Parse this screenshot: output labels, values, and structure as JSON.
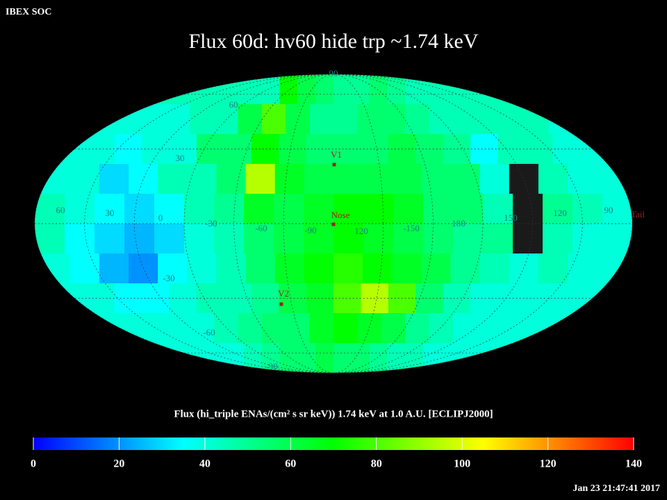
{
  "chart_data": {
    "type": "heatmap",
    "header": "IBEX SOC",
    "title": "Flux   60d: hv60 hide trp ~1.74 keV",
    "timestamp": "Jan 23 21:47:41 2017",
    "lon_labels": [
      "60",
      "30",
      "0",
      "-30",
      "-60",
      "-90",
      "120",
      "-150",
      "180",
      "150",
      "120",
      "90"
    ],
    "lat_labels": [
      "90",
      "60",
      "30",
      "-30",
      "-60",
      "-90"
    ],
    "markers": [
      "V1",
      "Nose",
      "V2",
      "Tail"
    ],
    "colorscale": [
      "#0000ff",
      "#0080ff",
      "#00ffff",
      "#00ff80",
      "#00ff00",
      "#80ff00",
      "#ffff00",
      "#ff8000",
      "#ff0000"
    ],
    "grid": [
      [
        45,
        45,
        45,
        45,
        45,
        45,
        45,
        70,
        60,
        55,
        50,
        50,
        55,
        50,
        45,
        45,
        45,
        45,
        45,
        45
      ],
      [
        40,
        40,
        40,
        40,
        45,
        45,
        60,
        80,
        60,
        50,
        50,
        55,
        55,
        50,
        45,
        45,
        45,
        45,
        45,
        40
      ],
      [
        40,
        40,
        35,
        40,
        40,
        55,
        55,
        70,
        60,
        55,
        55,
        55,
        60,
        55,
        50,
        35,
        45,
        45,
        40,
        40
      ],
      [
        40,
        40,
        30,
        35,
        45,
        45,
        55,
        95,
        65,
        60,
        60,
        60,
        60,
        55,
        55,
        40,
        null,
        45,
        40,
        40
      ],
      [
        45,
        40,
        35,
        30,
        35,
        45,
        50,
        65,
        60,
        65,
        70,
        70,
        65,
        55,
        55,
        45,
        null,
        50,
        45,
        40
      ],
      [
        45,
        35,
        30,
        25,
        30,
        40,
        45,
        55,
        60,
        65,
        70,
        65,
        60,
        55,
        50,
        50,
        null,
        45,
        40,
        40
      ],
      [
        40,
        35,
        25,
        20,
        35,
        40,
        45,
        55,
        65,
        70,
        75,
        70,
        65,
        60,
        50,
        45,
        40,
        45,
        40,
        40
      ],
      [
        40,
        40,
        35,
        35,
        40,
        45,
        45,
        50,
        60,
        65,
        80,
        95,
        80,
        55,
        45,
        40,
        40,
        40,
        40,
        40
      ],
      [
        40,
        40,
        40,
        40,
        40,
        45,
        50,
        55,
        55,
        65,
        70,
        65,
        60,
        50,
        45,
        40,
        40,
        40,
        40,
        40
      ],
      [
        40,
        40,
        40,
        40,
        40,
        45,
        50,
        55,
        55,
        60,
        55,
        55,
        50,
        45,
        45,
        40,
        40,
        40,
        40,
        40
      ]
    ],
    "colorbar": {
      "label": "Flux (hi_triple ENAs/(cm² s sr keV))  1.74 keV at 1.0 A.U. [ECLIPJ2000]",
      "lim": [
        0,
        140
      ],
      "ticks": [
        0,
        20,
        40,
        60,
        80,
        100,
        120,
        140
      ]
    }
  }
}
